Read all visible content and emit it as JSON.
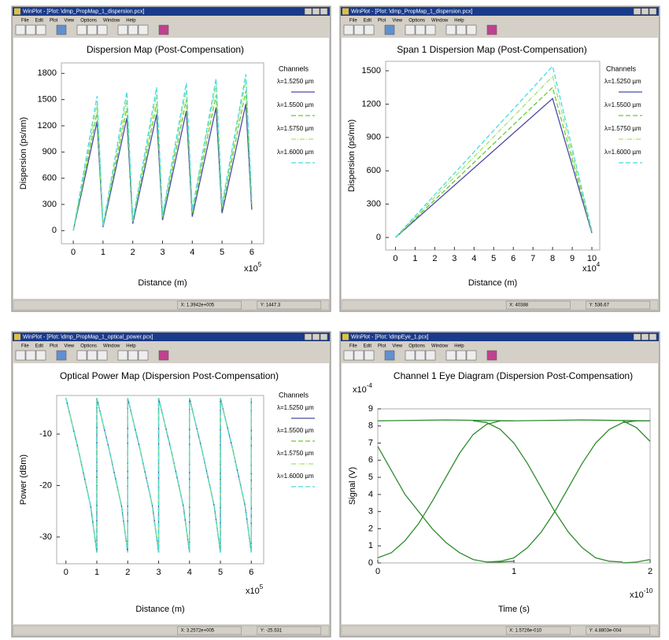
{
  "menu": [
    "File",
    "Edit",
    "Plot",
    "View",
    "Options",
    "Window",
    "Help"
  ],
  "windows": [
    {
      "title": "WinPlot - [Plot: \\dmp_PropMap_1_dispersion.pcx]",
      "status": [
        "X: 1.3942e+005",
        "Y: 1447.3"
      ]
    },
    {
      "title": "WinPlot - [Plot: \\dmp_PropMap_1_dispersion.pcx]",
      "status": [
        "X: 40388",
        "Y: 536.67"
      ]
    },
    {
      "title": "WinPlot - [Plot: \\dmp_PropMap_1_optical_power.pcx]",
      "status": [
        "X: 3.2572e+005",
        "Y: -25.531"
      ]
    },
    {
      "title": "WinPlot - [Plot: \\dmpEye_1.pcx]",
      "status": [
        "X: 1.5726e-010",
        "Y: 4.8803e-004"
      ]
    }
  ],
  "chart_data": [
    {
      "type": "line",
      "title": "Dispersion Map (Post-Compensation)",
      "x_label": "Distance (m)",
      "y_label": "Dispersion (ps/nm)",
      "x_multiplier": {
        "base": "x10",
        "exponent": "5"
      },
      "legend_title": "Channels",
      "legend": "right",
      "grid": false,
      "x": [
        0,
        0.8,
        1,
        1.8,
        2,
        2.8,
        3,
        3.8,
        4,
        4.8,
        5,
        5.8,
        6
      ],
      "xlim": [
        -0.4,
        6.4
      ],
      "ylim": [
        -150,
        1920
      ],
      "xticks": [
        0,
        1,
        2,
        3,
        4,
        5,
        6
      ],
      "yticks": [
        0,
        300,
        600,
        900,
        1200,
        1500,
        1800
      ],
      "series": [
        {
          "name": "λ=1.5250 µm",
          "color": "#4a4aa8",
          "line_style": "solid",
          "values": [
            0,
            1250,
            40,
            1290,
            80,
            1330,
            120,
            1370,
            160,
            1410,
            200,
            1450,
            240
          ]
        },
        {
          "name": "λ=1.5500 µm",
          "color": "#66cc33",
          "line_style": "dashed",
          "values": [
            0,
            1350,
            50,
            1400,
            100,
            1450,
            150,
            1500,
            200,
            1550,
            250,
            1600,
            300
          ]
        },
        {
          "name": "λ=1.5750 µm",
          "color": "#a8e070",
          "line_style": "dashdot",
          "values": [
            0,
            1450,
            55,
            1505,
            110,
            1560,
            165,
            1615,
            220,
            1670,
            275,
            1725,
            330
          ]
        },
        {
          "name": "λ=1.6000 µm",
          "color": "#44dde0",
          "line_style": "dashed",
          "values": [
            0,
            1540,
            60,
            1590,
            120,
            1640,
            180,
            1690,
            240,
            1740,
            300,
            1790,
            360
          ]
        }
      ]
    },
    {
      "type": "line",
      "title": "Span 1 Dispersion Map (Post-Compensation)",
      "x_label": "Distance (m)",
      "y_label": "Dispersion (ps/nm)",
      "x_multiplier": {
        "base": "x10",
        "exponent": "4"
      },
      "legend_title": "Channels",
      "legend": "right",
      "grid": false,
      "x": [
        0,
        8,
        10
      ],
      "xlim": [
        -0.5,
        10.4
      ],
      "ylim": [
        -113,
        1585
      ],
      "xticks": [
        0,
        1,
        2,
        3,
        4,
        5,
        6,
        7,
        8,
        9,
        10
      ],
      "yticks": [
        0,
        300,
        600,
        900,
        1200,
        1500
      ],
      "series": [
        {
          "name": "λ=1.5250 µm",
          "color": "#4a4aa8",
          "line_style": "solid",
          "values": [
            0,
            1250,
            40
          ]
        },
        {
          "name": "λ=1.5500 µm",
          "color": "#66cc33",
          "line_style": "dashed",
          "values": [
            0,
            1350,
            50
          ]
        },
        {
          "name": "λ=1.5750 µm",
          "color": "#a8e070",
          "line_style": "dashdot",
          "values": [
            0,
            1450,
            55
          ]
        },
        {
          "name": "λ=1.6000 µm",
          "color": "#44dde0",
          "line_style": "dashed",
          "values": [
            0,
            1540,
            60
          ]
        }
      ]
    },
    {
      "type": "line",
      "title": "Optical Power Map (Dispersion Post-Compensation)",
      "x_label": "Distance (m)",
      "y_label": "Power (dBm)",
      "x_multiplier": {
        "base": "x10",
        "exponent": "5"
      },
      "legend_title": "Channels",
      "legend": "right",
      "grid": false,
      "x": [
        0,
        0.4,
        0.8,
        1,
        1,
        1.4,
        1.8,
        2,
        2,
        2.4,
        2.8,
        3,
        3,
        3.4,
        3.8,
        4,
        4,
        4.4,
        4.8,
        5,
        5,
        5.4,
        5.8,
        6,
        6
      ],
      "xlim": [
        -0.3,
        6.4
      ],
      "ylim": [
        -35.2,
        -2.5
      ],
      "xticks": [
        0,
        1,
        2,
        3,
        4,
        5,
        6
      ],
      "yticks": [
        -30,
        -20,
        -10
      ],
      "series": [
        {
          "name": "λ=1.5250 µm",
          "color": "#4a4aa8",
          "line_style": "solid",
          "values": [
            -3,
            -13,
            -24,
            -33,
            -3,
            -13,
            -24,
            -33,
            -3,
            -13,
            -24,
            -33,
            -3,
            -13,
            -24,
            -33,
            -3,
            -13,
            -24,
            -33,
            -3,
            -13,
            -24,
            -33,
            -3
          ]
        },
        {
          "name": "λ=1.5500 µm",
          "color": "#66cc33",
          "line_style": "dashed",
          "values": [
            -3,
            -13,
            -24,
            -33,
            -3,
            -13,
            -24,
            -33,
            -3,
            -13,
            -24,
            -33,
            -3,
            -13,
            -24,
            -33,
            -3,
            -13,
            -24,
            -33,
            -3,
            -13,
            -24,
            -33,
            -3
          ]
        },
        {
          "name": "λ=1.5750 µm",
          "color": "#a8e070",
          "line_style": "dashdot",
          "values": [
            -3,
            -13,
            -24,
            -33,
            -3,
            -13,
            -24,
            -33,
            -3,
            -13,
            -24,
            -33,
            -3,
            -13,
            -24,
            -33,
            -3,
            -13,
            -24,
            -33,
            -3,
            -13,
            -24,
            -33,
            -3
          ]
        },
        {
          "name": "λ=1.6000 µm",
          "color": "#44dde0",
          "line_style": "dashed",
          "values": [
            -3,
            -13,
            -24,
            -33,
            -3,
            -13,
            -24,
            -33,
            -3,
            -13,
            -24,
            -33,
            -3,
            -13,
            -24,
            -33,
            -3,
            -13,
            -24,
            -33,
            -3,
            -13,
            -24,
            -33,
            -3
          ]
        }
      ]
    },
    {
      "type": "line",
      "title": "Channel 1 Eye Diagram (Dispersion Post-Compensation)",
      "x_label": "Time (s)",
      "y_label": "Signal (V)",
      "x_multiplier": {
        "base": "x10",
        "exponent": "-10"
      },
      "y_multiplier": {
        "base": "x10",
        "exponent": "-4"
      },
      "grid": false,
      "xlim": [
        0,
        2
      ],
      "ylim": [
        0,
        9
      ],
      "xticks": [
        0,
        1,
        2
      ],
      "yticks": [
        0,
        1,
        2,
        3,
        4,
        5,
        6,
        7,
        8,
        9
      ],
      "series": [
        {
          "color": "#2e8b2e",
          "line_style": "solid",
          "x": [
            0,
            0.5,
            1,
            1.5,
            2
          ],
          "values": [
            8.3,
            8.35,
            8.3,
            8.35,
            8.3
          ]
        },
        {
          "color": "#2e8b2e",
          "line_style": "solid",
          "x": [
            0,
            0.1,
            0.2,
            0.3,
            0.4,
            0.5,
            0.6,
            0.7,
            0.8,
            0.9,
            1
          ],
          "values": [
            6.8,
            5.4,
            4,
            3,
            2,
            1.2,
            0.6,
            0.2,
            0.05,
            0.05,
            0.1
          ]
        },
        {
          "color": "#2e8b2e",
          "line_style": "solid",
          "x": [
            0,
            0.1,
            0.2,
            0.3,
            0.4,
            0.5,
            0.6,
            0.7,
            0.8,
            0.9,
            1
          ],
          "values": [
            0.3,
            0.6,
            1.3,
            2.3,
            3.6,
            5,
            6.4,
            7.5,
            8.1,
            8.3,
            8.3
          ]
        },
        {
          "color": "#2e8b2e",
          "line_style": "solid",
          "x": [
            0.7,
            0.8,
            0.9,
            1,
            1.1,
            1.2,
            1.3,
            1.4,
            1.5,
            1.6,
            1.7,
            1.8
          ],
          "values": [
            8.3,
            8.2,
            7.8,
            7,
            5.8,
            4.4,
            3,
            1.8,
            0.9,
            0.3,
            0.1,
            0.05
          ]
        },
        {
          "color": "#2e8b2e",
          "line_style": "solid",
          "x": [
            0.8,
            0.9,
            1,
            1.1,
            1.2,
            1.3,
            1.4,
            1.5,
            1.6,
            1.7,
            1.8,
            1.9,
            2
          ],
          "values": [
            0.05,
            0.1,
            0.3,
            0.9,
            1.8,
            3,
            4.4,
            5.8,
            7,
            7.8,
            8.2,
            8.3,
            8.3
          ]
        },
        {
          "color": "#2e8b2e",
          "line_style": "solid",
          "x": [
            1.8,
            1.9,
            2
          ],
          "values": [
            8.3,
            7.9,
            7.1
          ]
        },
        {
          "color": "#2e8b2e",
          "line_style": "solid",
          "x": [
            1.8,
            1.9,
            2
          ],
          "values": [
            0,
            0.05,
            0.2
          ]
        }
      ]
    }
  ]
}
